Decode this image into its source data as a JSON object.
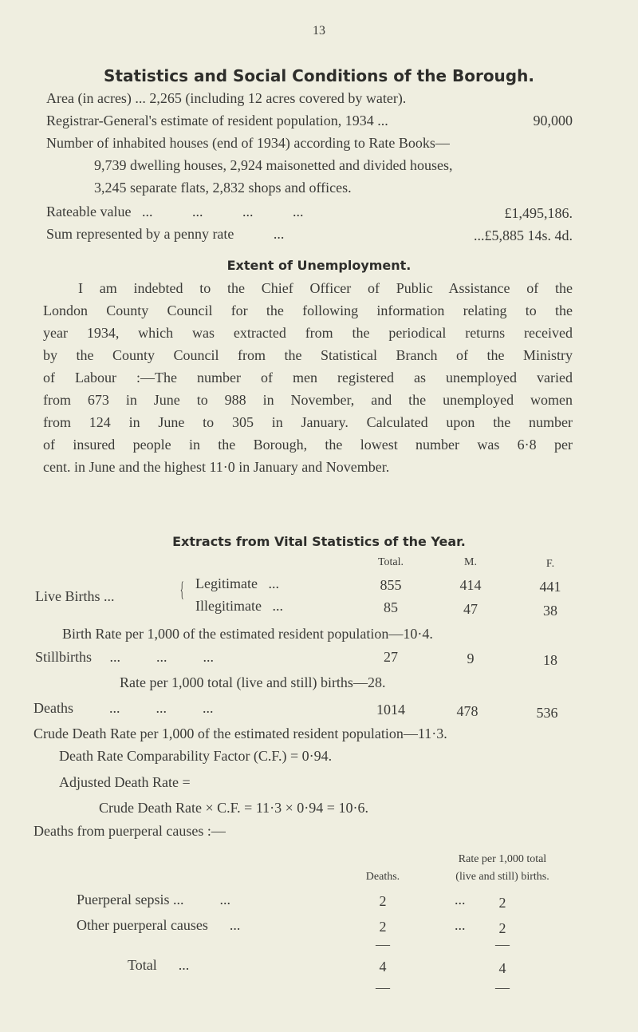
{
  "page_number": "13",
  "title": "Statistics and Social Conditions of the Borough.",
  "stats": {
    "area": "Area (in acres)   ...   2,265 (including 12 acres covered by water).",
    "population_label": "Registrar-General's estimate of resident population, 1934 ...",
    "population_value": "90,000",
    "houses_line1": "Number of inhabited houses (end of 1934) according to Rate Books—",
    "houses_line2": "9,739 dwelling houses, 2,924 maisonetted and divided houses,",
    "houses_line3": "3,245 separate flats, 2,832 shops and offices.",
    "rateable_label": "Rateable value   ...           ...           ...           ...",
    "rateable_value": "£1,495,186.",
    "penny_label": "Sum represented by a penny rate           ...",
    "penny_value": "...£5,885 14s. 4d."
  },
  "unemployment": {
    "heading": "Extent of Unemployment.",
    "lines": [
      "I am indebted to the Chief Officer of Public Assistance of the",
      "London County Council for the following information relating to the",
      "year 1934, which was extracted from the periodical returns received",
      "by the County Council from the Statistical Branch of the Ministry",
      "of Labour :—The number of men registered as unemployed varied",
      "from 673 in June to 988 in November, and the unemployed women",
      "from 124 in June to 305 in January.  Calculated upon the number",
      "of insured people in the Borough, the lowest number was 6·8 per",
      "cent. in June and the highest 11·0 in January and November."
    ]
  },
  "vital": {
    "heading": "Extracts from Vital Statistics of the Year.",
    "columns": [
      "Total.",
      "M.",
      "F."
    ],
    "live_births_label": "Live Births ...",
    "rows": [
      {
        "label": "Legitimate   ...",
        "total": "855",
        "m": "414",
        "f": "441"
      },
      {
        "label": "Illegitimate   ...",
        "total": "85",
        "m": "47",
        "f": "38"
      }
    ],
    "birth_rate": "Birth Rate per 1,000 of the estimated resident population—10·4.",
    "stillbirths": {
      "label": "Stillbirths     ...          ...          ...",
      "total": "27",
      "m": "9",
      "f": "18"
    },
    "still_rate": "Rate per 1,000 total (live and still) births—28.",
    "deaths": {
      "label": "Deaths          ...          ...          ...",
      "total": "1014",
      "m": "478",
      "f": "536"
    },
    "crude_rate": "Crude Death Rate per 1,000 of the estimated resident population—11·3.",
    "cf": "Death Rate Comparability Factor (C.F.) = 0·94.",
    "adjusted": "Adjusted Death Rate =",
    "adjusted_formula": "Crude Death Rate × C.F. = 11·3 × 0·94 = 10·6.",
    "puerperal_heading": "Deaths from puerperal causes :—"
  },
  "puerperal": {
    "col_deaths": "Deaths.",
    "col_rate1": "Rate per 1,000 total",
    "col_rate2": "(live and still) births.",
    "rows": [
      {
        "label": "Puerperal sepsis ...          ...",
        "deaths": "2",
        "dots": "...",
        "rate": "2"
      },
      {
        "label": "Other puerperal causes      ...",
        "deaths": "2",
        "dots": "...",
        "rate": "2"
      }
    ],
    "dash": "—",
    "total": {
      "label": "Total      ...",
      "deaths": "4",
      "rate": "4"
    }
  }
}
